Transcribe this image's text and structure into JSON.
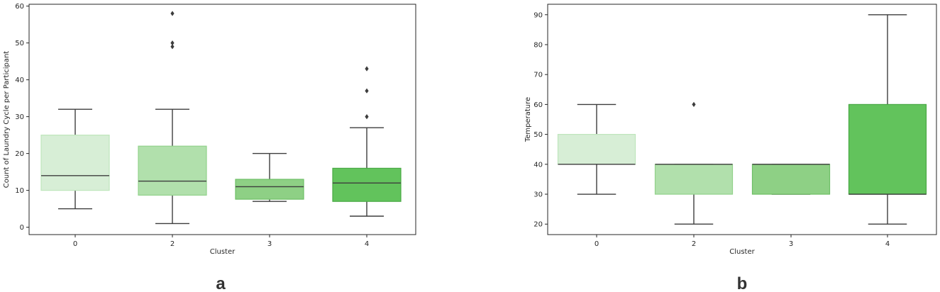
{
  "colors": {
    "box_fills": [
      "#d7eed6",
      "#b1e0ac",
      "#8ed085",
      "#62c35c"
    ],
    "box_edges": [
      "#bfe6bc",
      "#92d28b",
      "#6ebf66",
      "#49a944"
    ],
    "whisker": "#3d3d3d",
    "axis": "#262626"
  },
  "chart_data": [
    {
      "panel_label": "a",
      "type": "box",
      "xlabel": "Cluster",
      "ylabel": "Count of Laundry Cycle per Participant",
      "categories": [
        "0",
        "2",
        "3",
        "4"
      ],
      "ylim": [
        -2,
        60.5
      ],
      "yticks": [
        0,
        10,
        20,
        30,
        40,
        50,
        60
      ],
      "grid": false,
      "boxes": [
        {
          "category": "0",
          "whislo": 5,
          "q1": 10,
          "med": 14,
          "q3": 25,
          "whishi": 32,
          "fliers": []
        },
        {
          "category": "2",
          "whislo": 1,
          "q1": 8.7,
          "med": 12.5,
          "q3": 22,
          "whishi": 32,
          "fliers": [
            49,
            50,
            58
          ]
        },
        {
          "category": "3",
          "whislo": 7,
          "q1": 7.6,
          "med": 11,
          "q3": 13,
          "whishi": 20,
          "fliers": []
        },
        {
          "category": "4",
          "whislo": 3,
          "q1": 7,
          "med": 12,
          "q3": 16,
          "whishi": 27,
          "fliers": [
            30,
            37,
            43
          ]
        }
      ]
    },
    {
      "panel_label": "b",
      "type": "box",
      "xlabel": "Cluster",
      "ylabel": "Temperature",
      "categories": [
        "0",
        "2",
        "3",
        "4"
      ],
      "ylim": [
        16.5,
        93.5
      ],
      "yticks": [
        20,
        30,
        40,
        50,
        60,
        70,
        80,
        90
      ],
      "grid": false,
      "boxes": [
        {
          "category": "0",
          "whislo": 30,
          "q1": 40,
          "med": 40,
          "q3": 50,
          "whishi": 60,
          "fliers": []
        },
        {
          "category": "2",
          "whislo": 20,
          "q1": 30,
          "med": 40,
          "q3": 40,
          "whishi": 40,
          "fliers": [
            60
          ]
        },
        {
          "category": "3",
          "whislo": 30,
          "q1": 30,
          "med": 40,
          "q3": 40,
          "whishi": 40,
          "fliers": []
        },
        {
          "category": "4",
          "whislo": 20,
          "q1": 30,
          "med": 30,
          "q3": 60,
          "whishi": 90,
          "fliers": []
        }
      ]
    }
  ]
}
